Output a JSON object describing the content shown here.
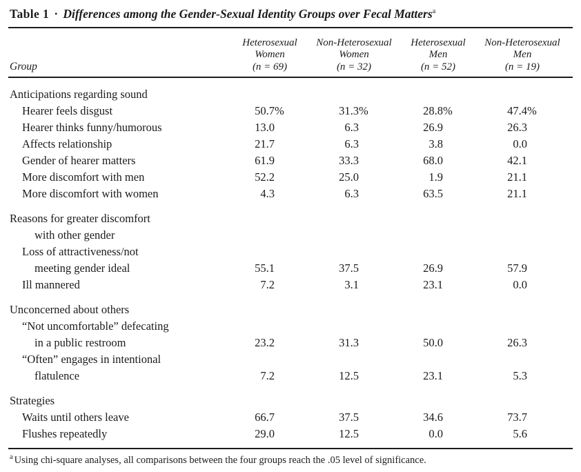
{
  "page": {
    "background_color": "#ffffff",
    "text_color": "#1b1b1b"
  },
  "title": {
    "label": "Table 1",
    "bullet": "•",
    "text": "Differences among the Gender-Sexual Identity Groups over Fecal Matters",
    "superscript": "a"
  },
  "header": {
    "group_label": "Group",
    "columns": [
      {
        "line1": "Heterosexual",
        "line2": "Women",
        "line3": "(n = 69)"
      },
      {
        "line1": "Non-Heterosexual",
        "line2": "Women",
        "line3": "(n = 32)"
      },
      {
        "line1": "Heterosexual",
        "line2": "Men",
        "line3": "(n = 52)"
      },
      {
        "line1": "Non-Heterosexual",
        "line2": "Men",
        "line3": "(n = 19)"
      }
    ]
  },
  "table": {
    "sections": [
      {
        "lines": [
          {
            "label": "Anticipations regarding sound",
            "indent": 0
          },
          {
            "label": "Hearer feels disgust",
            "indent": 1,
            "values": [
              "50.7",
              "31.3",
              "28.8",
              "47.4"
            ],
            "suffix": "%"
          },
          {
            "label": "Hearer thinks funny/humorous",
            "indent": 1,
            "values": [
              "13.0",
              "6.3",
              "26.9",
              "26.3"
            ]
          },
          {
            "label": "Affects relationship",
            "indent": 1,
            "values": [
              "21.7",
              "6.3",
              "3.8",
              "0.0"
            ]
          },
          {
            "label": "Gender of hearer matters",
            "indent": 1,
            "values": [
              "61.9",
              "33.3",
              "68.0",
              "42.1"
            ]
          },
          {
            "label": "More discomfort with men",
            "indent": 1,
            "values": [
              "52.2",
              "25.0",
              "1.9",
              "21.1"
            ]
          },
          {
            "label": "More discomfort with women",
            "indent": 1,
            "values": [
              "4.3",
              "6.3",
              "63.5",
              "21.1"
            ]
          }
        ]
      },
      {
        "lines": [
          {
            "label": "Reasons for greater discomfort",
            "indent": 0
          },
          {
            "label": "with other gender",
            "indent": 2
          },
          {
            "label": "Loss of attractiveness/not",
            "indent": 1
          },
          {
            "label": "meeting gender ideal",
            "indent": 2,
            "values": [
              "55.1",
              "37.5",
              "26.9",
              "57.9"
            ]
          },
          {
            "label": "Ill mannered",
            "indent": 1,
            "values": [
              "7.2",
              "3.1",
              "23.1",
              "0.0"
            ]
          }
        ]
      },
      {
        "lines": [
          {
            "label": "Unconcerned about others",
            "indent": 0
          },
          {
            "label": "“Not uncomfortable” defecating",
            "indent": 1
          },
          {
            "label": "in a public restroom",
            "indent": 2,
            "values": [
              "23.2",
              "31.3",
              "50.0",
              "26.3"
            ]
          },
          {
            "label": "“Often” engages in intentional",
            "indent": 1
          },
          {
            "label": "flatulence",
            "indent": 2,
            "values": [
              "7.2",
              "12.5",
              "23.1",
              "5.3"
            ]
          }
        ]
      },
      {
        "lines": [
          {
            "label": "Strategies",
            "indent": 0
          },
          {
            "label": "Waits until others leave",
            "indent": 1,
            "values": [
              "66.7",
              "37.5",
              "34.6",
              "73.7"
            ]
          },
          {
            "label": "Flushes repeatedly",
            "indent": 1,
            "values": [
              "29.0",
              "12.5",
              "0.0",
              "5.6"
            ]
          }
        ]
      }
    ]
  },
  "footnote": {
    "superscript": "a",
    "text": "Using chi-square analyses, all comparisons between the four groups reach the .05 level of significance."
  }
}
